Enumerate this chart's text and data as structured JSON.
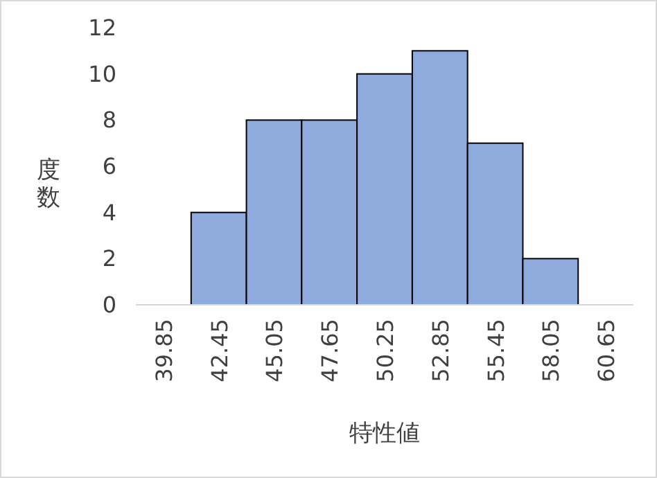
{
  "chart_data": {
    "type": "bar",
    "xlabel": "特性値",
    "ylabel": "度数",
    "categories": [
      "39.85",
      "42.45",
      "45.05",
      "47.65",
      "50.25",
      "52.85",
      "55.45",
      "58.05",
      "60.65"
    ],
    "values": [
      0,
      4,
      8,
      8,
      10,
      11,
      7,
      2,
      0
    ],
    "color": "#8faadc",
    "ylim": [
      0,
      12
    ],
    "yticks": [
      0,
      2,
      4,
      6,
      8,
      10,
      12
    ],
    "grid": false
  }
}
